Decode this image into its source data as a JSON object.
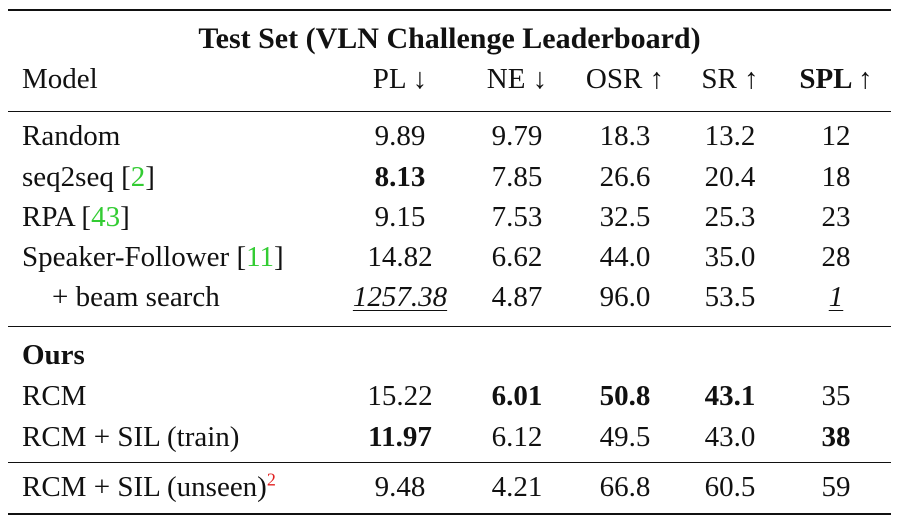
{
  "table": {
    "title": "Test Set (VLN Challenge Leaderboard)",
    "headers": {
      "model": "Model",
      "pl": "PL ↓",
      "ne": "NE ↓",
      "osr": "OSR ↑",
      "sr": "SR ↑",
      "spl": "SPL ↑"
    },
    "baselines": [
      {
        "model": "Random",
        "ref": "",
        "pl": "9.89",
        "ne": "9.79",
        "osr": "18.3",
        "sr": "13.2",
        "spl": "12"
      },
      {
        "model": "seq2seq [",
        "ref": "2",
        "ref_close": "]",
        "pl": "8.13",
        "ne": "7.85",
        "osr": "26.6",
        "sr": "20.4",
        "spl": "18"
      },
      {
        "model": "RPA [",
        "ref": "43",
        "ref_close": "]",
        "pl": "9.15",
        "ne": "7.53",
        "osr": "32.5",
        "sr": "25.3",
        "spl": "23"
      },
      {
        "model": "Speaker-Follower [",
        "ref": "11",
        "ref_close": "]",
        "pl": "14.82",
        "ne": "6.62",
        "osr": "44.0",
        "sr": "35.0",
        "spl": "28"
      },
      {
        "model": "+ beam search",
        "ref": "",
        "pl": "1257.38",
        "ne": "4.87",
        "osr": "96.0",
        "sr": "53.5",
        "spl": "1"
      }
    ],
    "ours_label": "Ours",
    "ours": [
      {
        "model": "RCM",
        "pl": "15.22",
        "ne": "6.01",
        "osr": "50.8",
        "sr": "43.1",
        "spl": "35"
      },
      {
        "model": "RCM + SIL (train)",
        "pl": "11.97",
        "ne": "6.12",
        "osr": "49.5",
        "sr": "43.0",
        "spl": "38"
      }
    ],
    "unseen": {
      "model": "RCM + SIL (unseen)",
      "footnote": "2",
      "pl": "9.48",
      "ne": "4.21",
      "osr": "66.8",
      "sr": "60.5",
      "spl": "59"
    }
  },
  "colors": {
    "text": "#111111",
    "citation": "#33cc33",
    "footnote": "#e02020"
  }
}
